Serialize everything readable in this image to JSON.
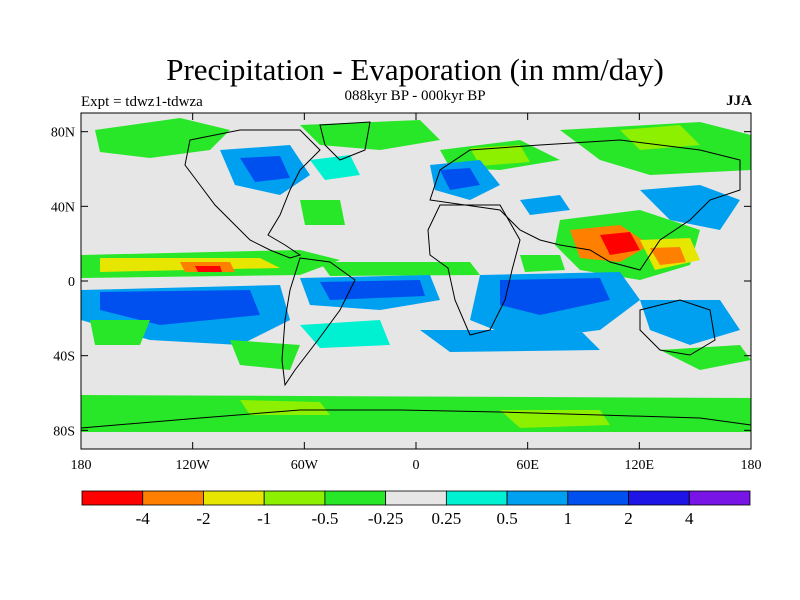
{
  "title": "Precipitation - Evaporation (in mm/day)",
  "subtitle": "088kyr BP - 000kyr BP",
  "expt_label": "Expt = tdwz1-tdwza",
  "season": "JJA",
  "map": {
    "lat_ticks": [
      "80N",
      "40N",
      "0",
      "40S",
      "80S"
    ],
    "lat_tick_values": [
      80,
      40,
      0,
      -40,
      -80
    ],
    "lon_ticks": [
      "180",
      "120W",
      "60W",
      "0",
      "60E",
      "120E",
      "180"
    ],
    "lon_tick_values": [
      -180,
      -120,
      -60,
      0,
      60,
      120,
      180
    ],
    "lat_range": [
      -90,
      90
    ],
    "lon_range": [
      -180,
      180
    ],
    "background_color": "#e6e6e6"
  },
  "colorbar": {
    "colors": [
      "#ff0000",
      "#ff7f00",
      "#e6e600",
      "#8cf000",
      "#28e628",
      "#e6e6e6",
      "#00f0d2",
      "#00a0f0",
      "#0050f0",
      "#1e14e6",
      "#7814e6"
    ],
    "labels": [
      "-4",
      "-2",
      "-1",
      "-0.5",
      "-0.25",
      "0.25",
      "0.5",
      "1",
      "2",
      "4"
    ]
  }
}
